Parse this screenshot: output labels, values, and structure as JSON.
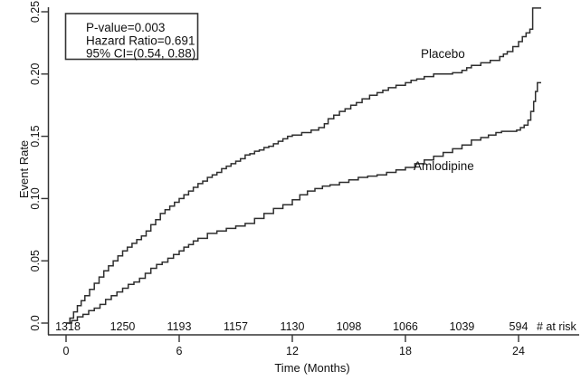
{
  "chart_data": {
    "type": "line",
    "subtype": "step-kaplan-meier",
    "title": "",
    "xlabel": "Time (Months)",
    "ylabel": "Event Rate",
    "xlim": [
      0,
      27.3
    ],
    "ylim": [
      0,
      0.26
    ],
    "grid": false,
    "legend_position": "inline-labels",
    "annotation": {
      "lines": [
        "P-value=0.003",
        "Hazard Ratio=0.691",
        "95% CI=(0.54, 0.88)"
      ]
    },
    "x_axis": {
      "ticks": [
        {
          "value": 0,
          "label": "0"
        },
        {
          "value": 6,
          "label": "6"
        },
        {
          "value": 12,
          "label": "12"
        },
        {
          "value": 18,
          "label": "18"
        },
        {
          "value": 24,
          "label": "24"
        }
      ]
    },
    "y_axis": {
      "ticks": [
        {
          "value": 0.0,
          "label": "0.0"
        },
        {
          "value": 0.05,
          "label": "0.05"
        },
        {
          "value": 0.1,
          "label": "0.10"
        },
        {
          "value": 0.15,
          "label": "0.15"
        },
        {
          "value": 0.2,
          "label": "0.20"
        },
        {
          "value": 0.25,
          "label": "0.25"
        }
      ]
    },
    "series": [
      {
        "name": "Placebo",
        "points": [
          [
            0,
            0
          ],
          [
            0.2,
            0.004
          ],
          [
            0.4,
            0.009
          ],
          [
            0.6,
            0.014
          ],
          [
            0.8,
            0.018
          ],
          [
            1.0,
            0.022
          ],
          [
            1.25,
            0.027
          ],
          [
            1.5,
            0.032
          ],
          [
            1.75,
            0.037
          ],
          [
            2.0,
            0.042
          ],
          [
            2.25,
            0.046
          ],
          [
            2.5,
            0.05
          ],
          [
            2.75,
            0.054
          ],
          [
            3.0,
            0.058
          ],
          [
            3.25,
            0.061
          ],
          [
            3.5,
            0.064
          ],
          [
            3.75,
            0.067
          ],
          [
            4.0,
            0.07
          ],
          [
            4.25,
            0.074
          ],
          [
            4.5,
            0.079
          ],
          [
            4.75,
            0.083
          ],
          [
            5.0,
            0.088
          ],
          [
            5.25,
            0.091
          ],
          [
            5.5,
            0.094
          ],
          [
            5.75,
            0.097
          ],
          [
            6.0,
            0.1
          ],
          [
            6.25,
            0.103
          ],
          [
            6.5,
            0.106
          ],
          [
            6.75,
            0.109
          ],
          [
            7.0,
            0.112
          ],
          [
            7.25,
            0.114
          ],
          [
            7.5,
            0.117
          ],
          [
            7.75,
            0.119
          ],
          [
            8.0,
            0.121
          ],
          [
            8.25,
            0.124
          ],
          [
            8.5,
            0.126
          ],
          [
            8.75,
            0.128
          ],
          [
            9.0,
            0.13
          ],
          [
            9.25,
            0.132
          ],
          [
            9.5,
            0.135
          ],
          [
            9.75,
            0.136
          ],
          [
            10.0,
            0.138
          ],
          [
            10.25,
            0.139
          ],
          [
            10.5,
            0.141
          ],
          [
            10.75,
            0.142
          ],
          [
            11.0,
            0.144
          ],
          [
            11.25,
            0.146
          ],
          [
            11.5,
            0.148
          ],
          [
            11.75,
            0.15
          ],
          [
            12.0,
            0.151
          ],
          [
            12.5,
            0.153
          ],
          [
            13.0,
            0.155
          ],
          [
            13.4,
            0.157
          ],
          [
            13.7,
            0.16
          ],
          [
            13.9,
            0.164
          ],
          [
            14.2,
            0.167
          ],
          [
            14.5,
            0.17
          ],
          [
            14.8,
            0.172
          ],
          [
            15.1,
            0.175
          ],
          [
            15.4,
            0.177
          ],
          [
            15.7,
            0.18
          ],
          [
            16.1,
            0.183
          ],
          [
            16.5,
            0.185
          ],
          [
            16.8,
            0.187
          ],
          [
            17.1,
            0.189
          ],
          [
            17.5,
            0.191
          ],
          [
            18.0,
            0.193
          ],
          [
            18.3,
            0.195
          ],
          [
            18.6,
            0.196
          ],
          [
            19.0,
            0.198
          ],
          [
            19.5,
            0.2
          ],
          [
            20.5,
            0.201
          ],
          [
            21.0,
            0.203
          ],
          [
            21.25,
            0.205
          ],
          [
            21.5,
            0.207
          ],
          [
            22.0,
            0.209
          ],
          [
            22.5,
            0.211
          ],
          [
            23.0,
            0.214
          ],
          [
            23.2,
            0.216
          ],
          [
            23.4,
            0.218
          ],
          [
            23.7,
            0.222
          ],
          [
            24.0,
            0.226
          ],
          [
            24.2,
            0.23
          ],
          [
            24.4,
            0.233
          ],
          [
            24.6,
            0.236
          ],
          [
            24.75,
            0.253
          ],
          [
            25.2,
            0.253
          ]
        ]
      },
      {
        "name": "Amlodipine",
        "points": [
          [
            0,
            0
          ],
          [
            0.3,
            0.002
          ],
          [
            0.6,
            0.005
          ],
          [
            0.9,
            0.007
          ],
          [
            1.2,
            0.01
          ],
          [
            1.5,
            0.012
          ],
          [
            1.8,
            0.015
          ],
          [
            2.1,
            0.019
          ],
          [
            2.4,
            0.022
          ],
          [
            2.7,
            0.025
          ],
          [
            3.0,
            0.028
          ],
          [
            3.3,
            0.031
          ],
          [
            3.6,
            0.033
          ],
          [
            3.9,
            0.036
          ],
          [
            4.2,
            0.04
          ],
          [
            4.5,
            0.044
          ],
          [
            4.8,
            0.047
          ],
          [
            5.1,
            0.049
          ],
          [
            5.4,
            0.052
          ],
          [
            5.7,
            0.055
          ],
          [
            6.0,
            0.058
          ],
          [
            6.25,
            0.061
          ],
          [
            6.5,
            0.063
          ],
          [
            6.75,
            0.066
          ],
          [
            7.0,
            0.068
          ],
          [
            7.5,
            0.072
          ],
          [
            8.0,
            0.074
          ],
          [
            8.5,
            0.076
          ],
          [
            9.0,
            0.078
          ],
          [
            9.5,
            0.08
          ],
          [
            10.0,
            0.084
          ],
          [
            10.5,
            0.088
          ],
          [
            11.0,
            0.092
          ],
          [
            11.5,
            0.095
          ],
          [
            12.0,
            0.099
          ],
          [
            12.4,
            0.103
          ],
          [
            12.8,
            0.106
          ],
          [
            13.2,
            0.108
          ],
          [
            13.6,
            0.11
          ],
          [
            14.0,
            0.111
          ],
          [
            14.5,
            0.113
          ],
          [
            15.0,
            0.115
          ],
          [
            15.5,
            0.117
          ],
          [
            16.0,
            0.118
          ],
          [
            16.5,
            0.119
          ],
          [
            17.0,
            0.121
          ],
          [
            17.5,
            0.123
          ],
          [
            18.0,
            0.125
          ],
          [
            18.5,
            0.128
          ],
          [
            19.0,
            0.131
          ],
          [
            19.5,
            0.134
          ],
          [
            20.0,
            0.137
          ],
          [
            20.5,
            0.14
          ],
          [
            21.0,
            0.143
          ],
          [
            21.5,
            0.147
          ],
          [
            22.0,
            0.149
          ],
          [
            22.4,
            0.151
          ],
          [
            22.8,
            0.153
          ],
          [
            23.1,
            0.154
          ],
          [
            23.9,
            0.155
          ],
          [
            24.1,
            0.157
          ],
          [
            24.3,
            0.159
          ],
          [
            24.5,
            0.163
          ],
          [
            24.65,
            0.17
          ],
          [
            24.8,
            0.178
          ],
          [
            24.9,
            0.186
          ],
          [
            25.0,
            0.193
          ],
          [
            25.2,
            0.193
          ]
        ]
      }
    ],
    "at_risk": {
      "label": "# at risk",
      "months": [
        0,
        3,
        6,
        9,
        12,
        15,
        18,
        21,
        24
      ],
      "counts": [
        "1318",
        "1250",
        "1193",
        "1157",
        "1130",
        "1098",
        "1066",
        "1039",
        "594"
      ]
    }
  }
}
